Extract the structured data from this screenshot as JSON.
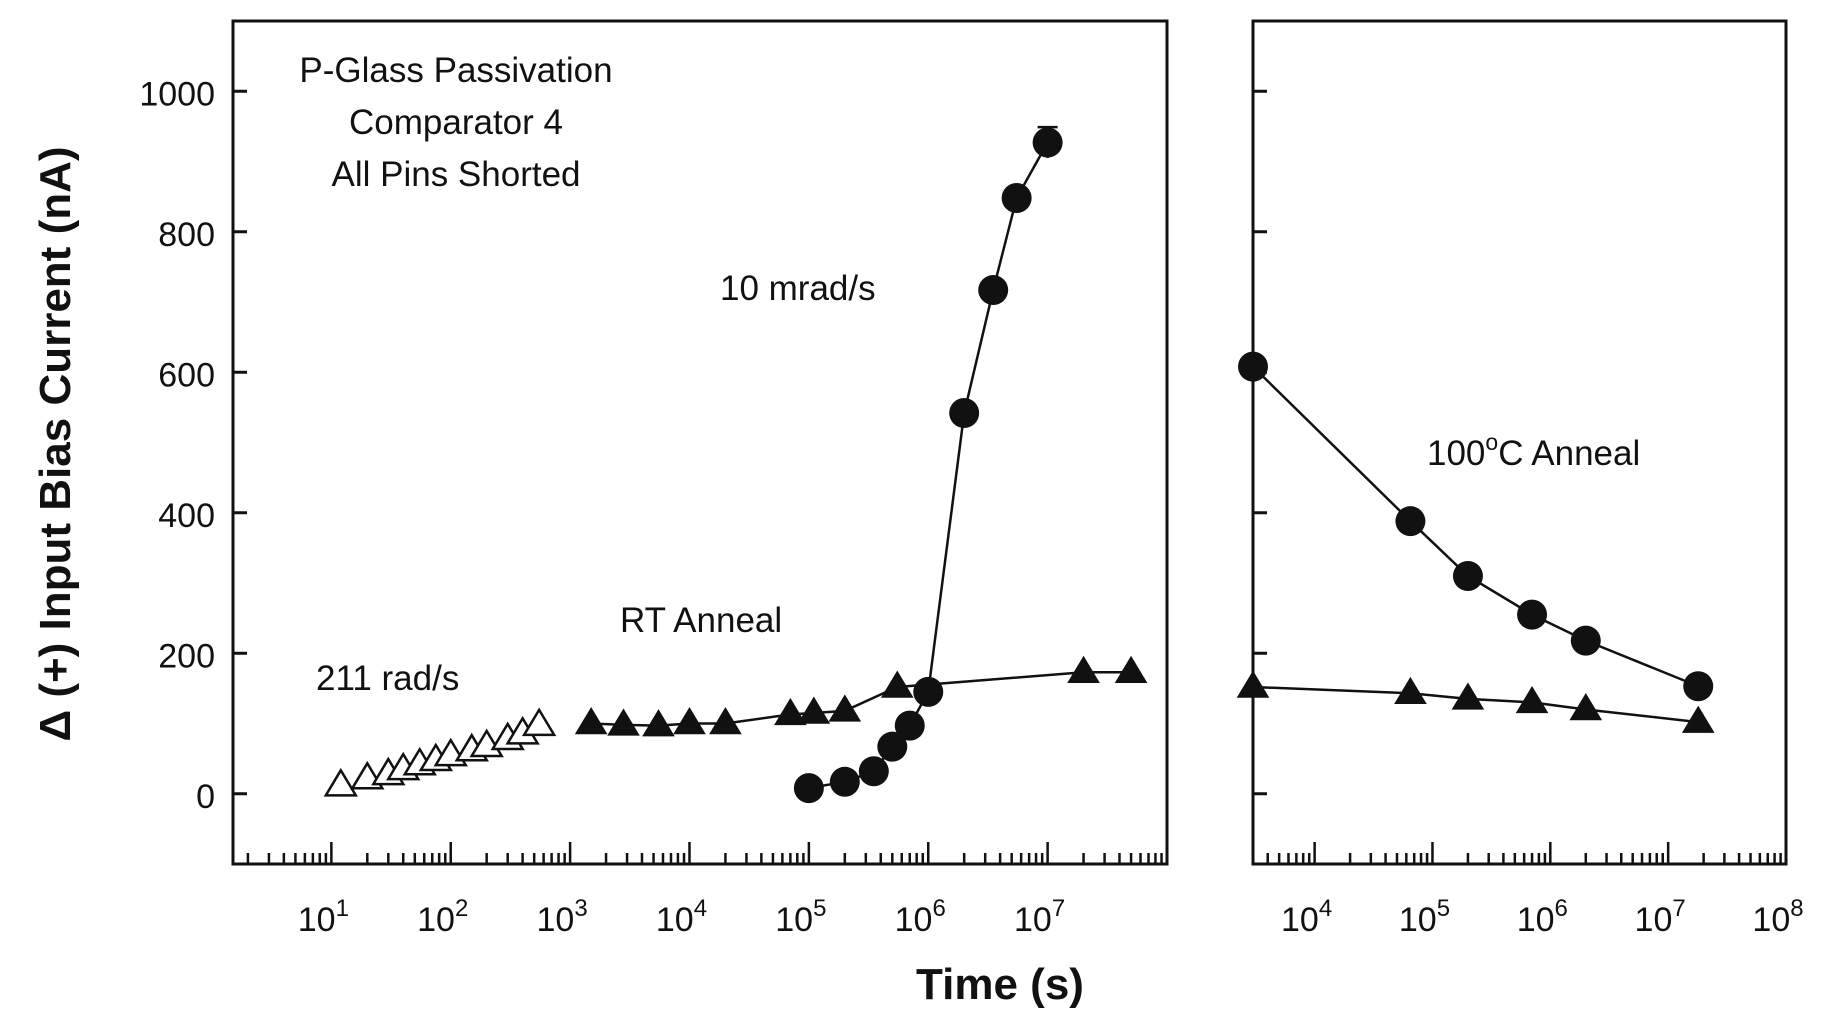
{
  "chart_data": [
    {
      "type": "scatter",
      "panel": "left",
      "xscale": "log",
      "xlim": [
        1.5,
        100000000
      ],
      "ylim": [
        -100,
        1100
      ],
      "ylabel": "Δ (+) Input Bias Current (nA)",
      "yticks": [
        0,
        200,
        400,
        600,
        800,
        1000
      ],
      "xtick_exponents": [
        1,
        2,
        3,
        4,
        5,
        6,
        7
      ],
      "annotations": [
        {
          "id": "title1",
          "text": "P-Glass Passivation"
        },
        {
          "id": "title2",
          "text": "Comparator 4"
        },
        {
          "id": "title3",
          "text": "All Pins Shorted"
        },
        {
          "id": "ten_mrad",
          "text": "10 mrad/s"
        },
        {
          "id": "rt_anneal",
          "text": "RT Anneal"
        },
        {
          "id": "high_rate",
          "text": "211 rad/s"
        }
      ],
      "series": [
        {
          "name": "211 rad/s",
          "marker": "open-triangle",
          "line": false,
          "x": [
            12,
            20,
            30,
            40,
            55,
            75,
            100,
            150,
            200,
            300,
            400,
            550
          ],
          "y": [
            12,
            22,
            28,
            35,
            42,
            48,
            55,
            62,
            68,
            78,
            86,
            98
          ]
        },
        {
          "name": "RT Anneal",
          "marker": "filled-triangle",
          "line": true,
          "x": [
            1500,
            2800,
            5500,
            10000,
            20000,
            70000,
            110000,
            200000,
            550000,
            20000000,
            50000000
          ],
          "y": [
            100,
            98,
            97,
            100,
            100,
            113,
            115,
            118,
            152,
            173,
            173
          ]
        },
        {
          "name": "10 mrad/s",
          "marker": "filled-circle",
          "line": true,
          "x": [
            100000,
            200000,
            350000,
            500000,
            700000,
            1000000,
            2000000,
            3500000,
            5500000,
            10000000
          ],
          "y": [
            8,
            17,
            32,
            67,
            97,
            145,
            542,
            717,
            848,
            927
          ],
          "y_error": [
            0,
            0,
            0,
            0,
            0,
            0,
            0,
            0,
            0,
            22
          ]
        }
      ]
    },
    {
      "type": "scatter",
      "panel": "right",
      "xscale": "log",
      "xlim": [
        3000,
        100000000
      ],
      "ylim": [
        -100,
        1100
      ],
      "xlabel": "Time (s)",
      "xtick_exponents": [
        4,
        5,
        6,
        7,
        8
      ],
      "annotations": [
        {
          "id": "anneal100",
          "text": "100",
          "superscript": "o",
          "rest": "C  Anneal"
        }
      ],
      "series": [
        {
          "name": "100°C Anneal (circles)",
          "marker": "filled-circle",
          "line": true,
          "x": [
            3000,
            65000,
            200000,
            700000,
            2000000,
            18000000
          ],
          "y": [
            608,
            388,
            310,
            255,
            218,
            153
          ]
        },
        {
          "name": "100°C Anneal (triangles)",
          "marker": "filled-triangle",
          "line": true,
          "x": [
            3000,
            65000,
            200000,
            700000,
            2000000,
            18000000
          ],
          "y": [
            152,
            143,
            135,
            130,
            120,
            102
          ]
        }
      ]
    }
  ]
}
